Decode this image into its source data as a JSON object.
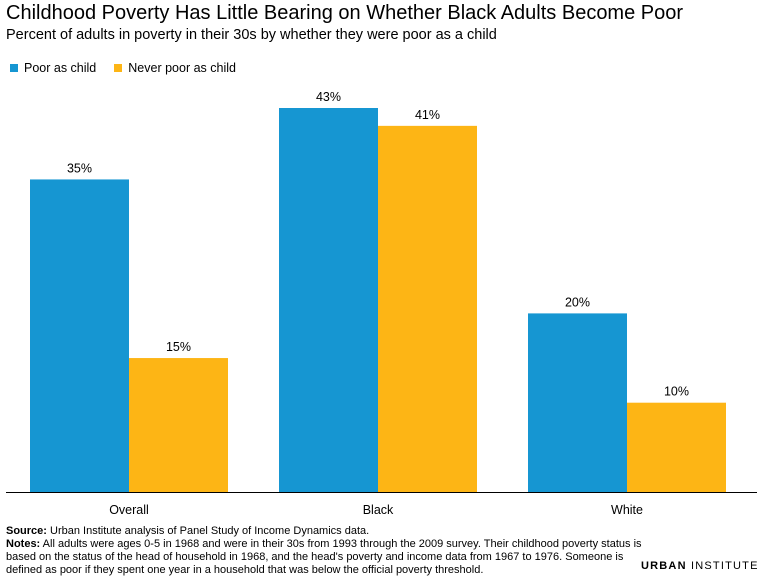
{
  "header": {
    "title": "Childhood Poverty Has Little Bearing on Whether Black Adults Become Poor",
    "subtitle": "Percent of adults in poverty in their 30s by whether they were poor as a child"
  },
  "colors": {
    "poor": "#1696d2",
    "never_poor": "#fdb515"
  },
  "chart_data": {
    "type": "bar",
    "categories": [
      "Overall",
      "Black",
      "White"
    ],
    "series": [
      {
        "name": "Poor as child",
        "values": [
          35,
          43,
          20
        ],
        "labels": [
          "35%",
          "43%",
          "20%"
        ]
      },
      {
        "name": "Never poor as child",
        "values": [
          15,
          41,
          10
        ],
        "labels": [
          "15%",
          "41%",
          "10%"
        ]
      }
    ],
    "ylim": [
      0,
      43
    ],
    "grid": false,
    "legend": "top-left"
  },
  "footer": {
    "source_label": "Source:",
    "source_text": " Urban Institute analysis of Panel Study of Income Dynamics data.",
    "notes_label": "Notes:",
    "notes_text": " All adults were ages 0-5 in 1968 and were in their 30s from 1993 through the 2009 survey. Their childhood poverty status is based on the status of the head of household in 1968, and the head's poverty and income data from 1967 to 1976. Someone is defined as poor if they spent one year in a household that was below the official poverty threshold."
  },
  "logo": {
    "word1": "URBAN",
    "word2": "INSTITUTE"
  }
}
